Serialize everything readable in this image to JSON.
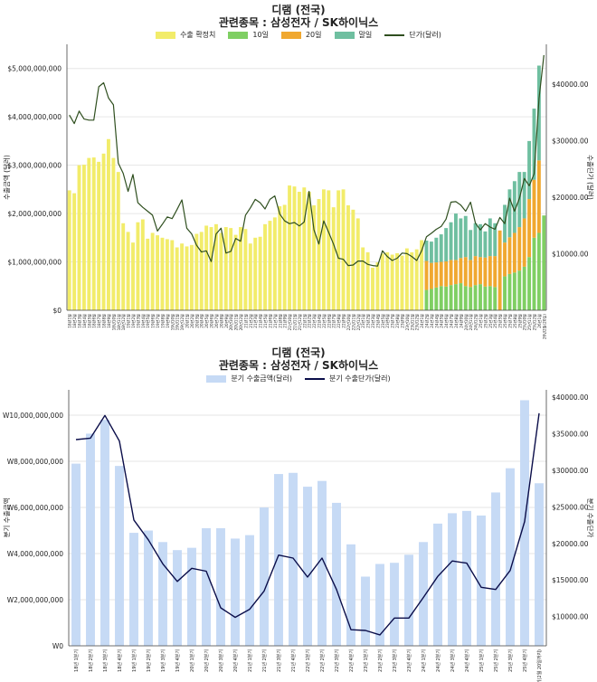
{
  "colors": {
    "export_confirmed": "#f2ec6a",
    "day10": "#7fcf63",
    "day20": "#f0a830",
    "month_end": "#6fbfa0",
    "unit_price_top": "#2f4f1f",
    "quarter_bar": "#c6daf5",
    "quarter_line": "#0b0e4a"
  },
  "chart_data": [
    {
      "type": "bar",
      "title": "디램 (전국)",
      "subtitle": "관련종목 : 삼성전자 / SK하이닉스",
      "ylabel": "수출금액 (달러)",
      "y2label": "수출단가 (달러)",
      "ylim": [
        0,
        5500000000
      ],
      "y2lim": [
        0,
        47000
      ],
      "yticks": [
        "$0",
        "$1,000,000,000",
        "$2,000,000,000",
        "$3,000,000,000",
        "$4,000,000,000",
        "$5,000,000,000"
      ],
      "ytick_values": [
        0,
        1000000000,
        2000000000,
        3000000000,
        4000000000,
        5000000000
      ],
      "y2ticks": [
        "$10000.00",
        "$20000.00",
        "$30000.00",
        "$40000.00"
      ],
      "y2tick_values": [
        10000,
        20000,
        30000,
        40000
      ],
      "legend": [
        "수출 확정치",
        "10일",
        "20일",
        "말일",
        "단가(달러)"
      ],
      "categories": [
        "18년1월",
        "18년2월",
        "18년3월",
        "18년4월",
        "18년5월",
        "18년6월",
        "18년7월",
        "18년8월",
        "18년9월",
        "18년10월",
        "18년11월",
        "18년12월",
        "19년1월",
        "19년2월",
        "19년3월",
        "19년4월",
        "19년5월",
        "19년6월",
        "19년7월",
        "19년8월",
        "19년9월",
        "19년10월",
        "19년11월",
        "19년12월",
        "20년1월",
        "20년2월",
        "20년3월",
        "20년4월",
        "20년5월",
        "20년6월",
        "20년7월",
        "20년8월",
        "20년9월",
        "20년10월",
        "20년11월",
        "20년12월",
        "21년1월",
        "21년2월",
        "21년3월",
        "21년4월",
        "21년5월",
        "21년6월",
        "21년7월",
        "21년8월",
        "21년9월",
        "21년10월",
        "21년11월",
        "21년12월",
        "22년1월",
        "22년2월",
        "22년3월",
        "22년4월",
        "22년5월",
        "22년6월",
        "22년7월",
        "22년8월",
        "22년9월",
        "22년10월",
        "22년11월",
        "22년12월",
        "23년1월",
        "23년2월",
        "23년3월",
        "23년4월",
        "23년5월",
        "23년6월",
        "23년7월",
        "23년8월",
        "23년9월",
        "23년10월",
        "23년11월",
        "23년12월",
        "24년1월",
        "24년2월",
        "24년3월",
        "24년4월",
        "24년5월",
        "24년6월",
        "24년7월",
        "24년8월",
        "24년9월",
        "24년10월",
        "24년11월",
        "24년12월",
        "25년1월",
        "25년2월",
        "25년3월",
        "25년4월",
        "25년5월",
        "25년6월",
        "25년7월",
        "25년8월",
        "25년9월",
        "25년10월",
        "25년11월",
        "25년12월",
        "26년1월",
        "26년2월(20일)"
      ],
      "confirmed": [
        2480000000,
        2420000000,
        3000000000,
        3010000000,
        3150000000,
        3160000000,
        3070000000,
        3240000000,
        3540000000,
        3150000000,
        2860000000,
        1800000000,
        1620000000,
        1400000000,
        1820000000,
        1880000000,
        1480000000,
        1600000000,
        1550000000,
        1500000000,
        1470000000,
        1450000000,
        1300000000,
        1380000000,
        1320000000,
        1350000000,
        1580000000,
        1620000000,
        1750000000,
        1720000000,
        1780000000,
        1600000000,
        1720000000,
        1700000000,
        1560000000,
        1720000000,
        1680000000,
        1380000000,
        1500000000,
        1520000000,
        1780000000,
        1850000000,
        1920000000,
        2150000000,
        2180000000,
        2580000000,
        2560000000,
        2450000000,
        2540000000,
        2450000000,
        2170000000,
        2300000000,
        2500000000,
        2480000000,
        2130000000,
        2480000000,
        2500000000,
        2170000000,
        2080000000,
        1900000000,
        1300000000,
        1200000000,
        880000000,
        990000000,
        1170000000,
        1200000000,
        1150000000,
        1180000000,
        1130000000,
        1280000000,
        1200000000,
        1260000000,
        1450000000,
        null,
        null,
        null,
        null,
        null,
        null,
        null,
        null,
        null,
        null,
        null,
        null,
        null,
        null,
        null,
        null,
        null,
        null,
        null,
        null,
        null,
        null,
        null,
        null,
        null
      ],
      "day10": [
        null,
        null,
        null,
        null,
        null,
        null,
        null,
        null,
        null,
        null,
        null,
        null,
        null,
        null,
        null,
        null,
        null,
        null,
        null,
        null,
        null,
        null,
        null,
        null,
        null,
        null,
        null,
        null,
        null,
        null,
        null,
        null,
        null,
        null,
        null,
        null,
        null,
        null,
        null,
        null,
        null,
        null,
        null,
        null,
        null,
        null,
        null,
        null,
        null,
        null,
        null,
        null,
        null,
        null,
        null,
        null,
        null,
        null,
        null,
        null,
        null,
        null,
        null,
        null,
        null,
        null,
        null,
        null,
        null,
        null,
        null,
        null,
        null,
        420000000,
        440000000,
        470000000,
        500000000,
        490000000,
        520000000,
        540000000,
        560000000,
        500000000,
        480000000,
        520000000,
        540000000,
        490000000,
        500000000,
        480000000,
        null,
        700000000,
        750000000,
        780000000,
        820000000,
        900000000,
        1100000000,
        1500000000,
        1600000000,
        1960000000
      ],
      "day20": [
        null,
        null,
        null,
        null,
        null,
        null,
        null,
        null,
        null,
        null,
        null,
        null,
        null,
        null,
        null,
        null,
        null,
        null,
        null,
        null,
        null,
        null,
        null,
        null,
        null,
        null,
        null,
        null,
        null,
        null,
        null,
        null,
        null,
        null,
        null,
        null,
        null,
        null,
        null,
        null,
        null,
        null,
        null,
        null,
        null,
        null,
        null,
        null,
        null,
        null,
        null,
        null,
        null,
        null,
        null,
        null,
        null,
        null,
        null,
        null,
        null,
        null,
        null,
        null,
        null,
        null,
        null,
        null,
        null,
        null,
        null,
        null,
        null,
        600000000,
        540000000,
        520000000,
        500000000,
        520000000,
        520000000,
        500000000,
        520000000,
        600000000,
        560000000,
        600000000,
        560000000,
        600000000,
        620000000,
        640000000,
        1650000000,
        700000000,
        760000000,
        820000000,
        900000000,
        1000000000,
        1200000000,
        1200000000,
        1500000000,
        null
      ],
      "month_end": [
        null,
        null,
        null,
        null,
        null,
        null,
        null,
        null,
        null,
        null,
        null,
        null,
        null,
        null,
        null,
        null,
        null,
        null,
        null,
        null,
        null,
        null,
        null,
        null,
        null,
        null,
        null,
        null,
        null,
        null,
        null,
        null,
        null,
        null,
        null,
        null,
        null,
        null,
        null,
        null,
        null,
        null,
        null,
        null,
        null,
        null,
        null,
        null,
        null,
        null,
        null,
        null,
        null,
        null,
        null,
        null,
        null,
        null,
        null,
        null,
        null,
        null,
        null,
        null,
        null,
        null,
        null,
        null,
        null,
        null,
        null,
        null,
        null,
        420000000,
        440000000,
        510000000,
        570000000,
        690000000,
        780000000,
        960000000,
        820000000,
        850000000,
        620000000,
        680000000,
        680000000,
        540000000,
        780000000,
        680000000,
        null,
        780000000,
        990000000,
        1070000000,
        1140000000,
        960000000,
        1200000000,
        1470000000,
        1960000000,
        null
      ],
      "unit_price": [
        34500,
        33000,
        35200,
        33800,
        33600,
        33600,
        39500,
        40200,
        37500,
        36300,
        26000,
        24200,
        21000,
        24000,
        19000,
        18200,
        17500,
        16800,
        14000,
        15200,
        16500,
        16200,
        17800,
        19500,
        14500,
        13500,
        11500,
        10300,
        10500,
        8600,
        13500,
        14500,
        10100,
        10400,
        12700,
        12200,
        16800,
        18100,
        19600,
        19000,
        17900,
        19600,
        20200,
        17000,
        15800,
        15300,
        15500,
        14900,
        15600,
        21000,
        14200,
        11700,
        15800,
        13800,
        11700,
        9200,
        9000,
        7900,
        8000,
        8700,
        8700,
        8100,
        7900,
        7800,
        10500,
        9500,
        8800,
        9200,
        10100,
        10000,
        9500,
        8800,
        10500,
        13000,
        13600,
        14300,
        14800,
        16100,
        19100,
        19200,
        18600,
        17500,
        19100,
        15400,
        14200,
        15300,
        14700,
        14300,
        16400,
        15300,
        19800,
        17500,
        19800,
        23300,
        22000,
        24100,
        37400,
        45100
      ]
    },
    {
      "type": "bar",
      "title": "디램 (전국)",
      "subtitle": "관련종목 : 삼성전자 / SK하이닉스",
      "ylabel": "분기 수출금액",
      "y2label": "분기 수출단가",
      "ylim": [
        0,
        11100000000
      ],
      "y2lim": [
        6000,
        41000
      ],
      "yticks": [
        "W0",
        "W2,000,000,000",
        "W4,000,000,000",
        "W6,000,000,000",
        "W8,000,000,000",
        "W10,000,000,000"
      ],
      "ytick_values": [
        0,
        2000000000,
        4000000000,
        6000000000,
        8000000000,
        10000000000
      ],
      "y2ticks": [
        "$10000.00",
        "$15000.00",
        "$20000.00",
        "$25000.00",
        "$30000.00",
        "$35000.00",
        "$40000.00"
      ],
      "y2tick_values": [
        10000,
        15000,
        20000,
        25000,
        30000,
        35000,
        40000
      ],
      "legend": [
        "분기 수출금액(달러)",
        "분기 수출단가(달러)"
      ],
      "categories": [
        "18년 1분기",
        "18년 2분기",
        "18년 3분기",
        "18년 4분기",
        "19년 1분기",
        "19년 2분기",
        "19년 3분기",
        "19년 4분기",
        "20년 1분기",
        "20년 2분기",
        "20년 3분기",
        "20년 4분기",
        "21년 1분기",
        "21년 2분기",
        "21년 3분기",
        "21년 4분기",
        "22년 1분기",
        "22년 2분기",
        "22년 3분기",
        "22년 4분기",
        "23년 1분기",
        "23년 2분기",
        "23년 3분기",
        "23년 4분기",
        "24년 1분기",
        "24년 2분기",
        "24년 3분기",
        "24년 4분기",
        "25년 1분기",
        "25년 2분기",
        "25년 3분기",
        "25년 4분기",
        "26년 1분기(2월 20일까지)"
      ],
      "values": [
        7900000000,
        9200000000,
        9800000000,
        7800000000,
        4900000000,
        5000000000,
        4500000000,
        4150000000,
        4250000000,
        5100000000,
        5100000000,
        4650000000,
        4800000000,
        6000000000,
        7450000000,
        7500000000,
        6900000000,
        7150000000,
        6200000000,
        4400000000,
        3000000000,
        3550000000,
        3600000000,
        3950000000,
        4500000000,
        5300000000,
        5750000000,
        5850000000,
        5650000000,
        6650000000,
        7700000000,
        10650000000,
        7050000000
      ],
      "unit_price": [
        34200,
        34400,
        37500,
        34000,
        23200,
        20500,
        17200,
        14800,
        16600,
        16200,
        11200,
        9900,
        11000,
        13500,
        18400,
        18000,
        15400,
        18000,
        13700,
        8200,
        8100,
        7500,
        9800,
        9800,
        12600,
        15500,
        17600,
        17300,
        14000,
        13700,
        16300,
        23000,
        37800
      ]
    }
  ]
}
